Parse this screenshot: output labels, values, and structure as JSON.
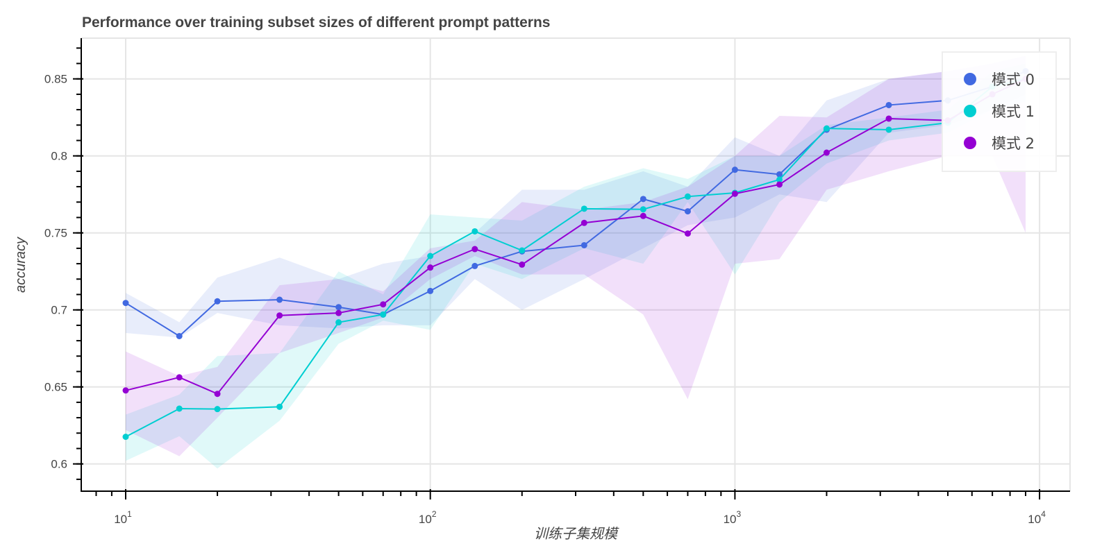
{
  "chart_data": {
    "type": "line",
    "title": "Performance over training subset sizes of different prompt patterns",
    "xlabel": "训练子集规模",
    "ylabel": "accuracy",
    "xscale": "log",
    "xlim": [
      7.1,
      25000
    ],
    "ylim": [
      0.582,
      0.877
    ],
    "grid": true,
    "legend_position": "top-right",
    "x_ticks": [
      10,
      100,
      1000,
      10000
    ],
    "x_tick_labels": [
      {
        "base": "10",
        "exp": "1"
      },
      {
        "base": "10",
        "exp": "2"
      },
      {
        "base": "10",
        "exp": "3"
      },
      {
        "base": "10",
        "exp": "4"
      }
    ],
    "y_ticks": [
      0.6,
      0.65,
      0.7,
      0.75,
      0.8,
      0.85
    ],
    "y_tick_labels": [
      "0.6",
      "0.65",
      "0.7",
      "0.75",
      "0.8",
      "0.85"
    ],
    "x": [
      10,
      15,
      20,
      32,
      50,
      70,
      100,
      140,
      200,
      320,
      500,
      700,
      1000,
      1400,
      2000,
      3200,
      5000,
      7000,
      9000
    ],
    "series": [
      {
        "name": "模式 0",
        "color": "#4169e1",
        "values": [
          0.7045,
          0.683,
          0.7056,
          0.7066,
          0.7018,
          0.697,
          0.7123,
          0.7285,
          0.738,
          0.742,
          0.772,
          0.764,
          0.791,
          0.788,
          0.817,
          0.833,
          0.836,
          0.845,
          0.855
        ],
        "lower": [
          0.685,
          0.682,
          0.698,
          0.69,
          0.688,
          0.69,
          0.69,
          0.72,
          0.7,
          0.72,
          0.74,
          0.755,
          0.76,
          0.775,
          0.77,
          0.815,
          0.82,
          0.83,
          0.84
        ],
        "upper": [
          0.711,
          0.692,
          0.721,
          0.734,
          0.72,
          0.73,
          0.735,
          0.75,
          0.778,
          0.778,
          0.79,
          0.78,
          0.812,
          0.8,
          0.836,
          0.85,
          0.855,
          0.86,
          0.865
        ]
      },
      {
        "name": "模式 1",
        "color": "#00ced1",
        "values": [
          0.6176,
          0.6359,
          0.6356,
          0.6371,
          0.6919,
          0.697,
          0.735,
          0.751,
          0.7386,
          0.7657,
          0.7653,
          0.7736,
          0.776,
          0.7846,
          0.8178,
          0.817,
          0.8215,
          0.845,
          0.85
        ],
        "lower": [
          0.602,
          0.618,
          0.597,
          0.628,
          0.678,
          0.693,
          0.687,
          0.73,
          0.72,
          0.74,
          0.73,
          0.77,
          0.723,
          0.77,
          0.795,
          0.81,
          0.815,
          0.83,
          0.835
        ],
        "upper": [
          0.632,
          0.645,
          0.67,
          0.672,
          0.725,
          0.71,
          0.762,
          0.76,
          0.758,
          0.78,
          0.792,
          0.785,
          0.8,
          0.8,
          0.82,
          0.825,
          0.83,
          0.855,
          0.86
        ]
      },
      {
        "name": "模式 2",
        "color": "#9400d3",
        "values": [
          0.6477,
          0.6562,
          0.6455,
          0.6964,
          0.698,
          0.7036,
          0.7275,
          0.7395,
          0.7294,
          0.7565,
          0.761,
          0.7496,
          0.7754,
          0.7814,
          0.8021,
          0.8242,
          0.823,
          0.84,
          0.85
        ],
        "lower": [
          0.622,
          0.605,
          0.63,
          0.672,
          0.685,
          0.695,
          0.72,
          0.735,
          0.723,
          0.723,
          0.697,
          0.642,
          0.73,
          0.733,
          0.778,
          0.79,
          0.8,
          0.8,
          0.75
        ],
        "upper": [
          0.673,
          0.657,
          0.663,
          0.716,
          0.72,
          0.712,
          0.74,
          0.745,
          0.77,
          0.765,
          0.77,
          0.78,
          0.8,
          0.826,
          0.825,
          0.85,
          0.855,
          0.86,
          0.865
        ]
      }
    ]
  }
}
